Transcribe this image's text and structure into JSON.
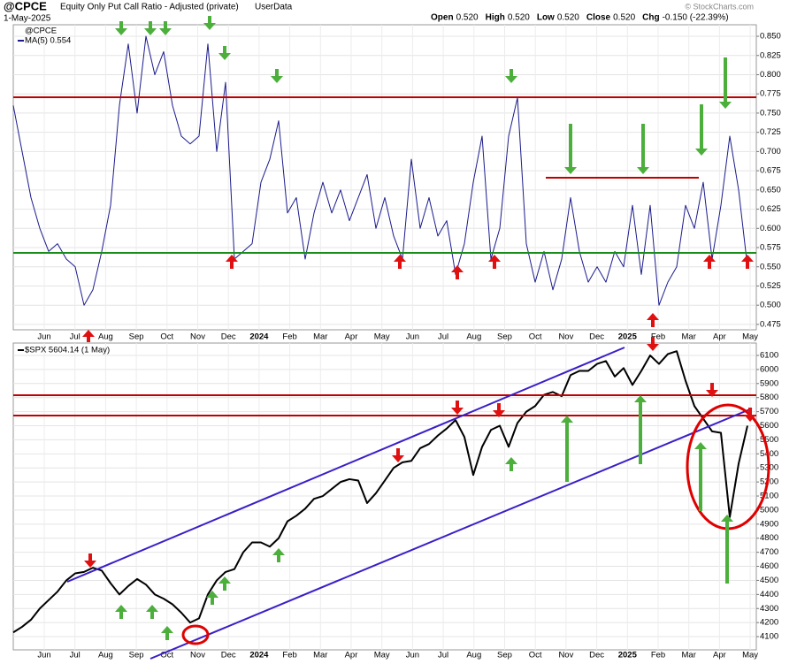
{
  "header": {
    "symbol": "@CPCE",
    "title": "Equity Only Put Call Ratio - Adjusted (private)",
    "source": "UserData",
    "date": "1-May-2025",
    "quote": [
      {
        "label": "Open",
        "value": "0.520"
      },
      {
        "label": "High",
        "value": "0.520"
      },
      {
        "label": "Low",
        "value": "0.520"
      },
      {
        "label": "Close",
        "value": "0.520"
      },
      {
        "label": "Chg",
        "value": "-0.150 (-22.39%)"
      }
    ],
    "credit": "© StockCharts.com"
  },
  "chart_data": [
    {
      "type": "line",
      "legend": [
        "@CPCE",
        "MA(5) 0.554"
      ],
      "x_labels": [
        "Jun",
        "Jul",
        "Aug",
        "Sep",
        "Oct",
        "Nov",
        "Dec",
        "2024",
        "Feb",
        "Mar",
        "Apr",
        "May",
        "Jun",
        "Jul",
        "Aug",
        "Sep",
        "Oct",
        "Nov",
        "Dec",
        "2025",
        "Feb",
        "Mar",
        "Apr",
        "May"
      ],
      "series": [
        {
          "name": "@CPCE",
          "color": "#1a1a8c",
          "values": [
            0.76,
            0.7,
            0.64,
            0.6,
            0.57,
            0.58,
            0.56,
            0.55,
            0.5,
            0.52,
            0.57,
            0.63,
            0.76,
            0.84,
            0.75,
            0.85,
            0.8,
            0.83,
            0.76,
            0.72,
            0.71,
            0.72,
            0.84,
            0.7,
            0.79,
            0.56,
            0.57,
            0.58,
            0.66,
            0.69,
            0.74,
            0.62,
            0.64,
            0.56,
            0.62,
            0.66,
            0.62,
            0.65,
            0.61,
            0.64,
            0.67,
            0.6,
            0.64,
            0.59,
            0.56,
            0.69,
            0.6,
            0.64,
            0.59,
            0.61,
            0.54,
            0.58,
            0.66,
            0.72,
            0.56,
            0.6,
            0.72,
            0.77,
            0.58,
            0.53,
            0.57,
            0.52,
            0.56,
            0.64,
            0.57,
            0.53,
            0.55,
            0.53,
            0.57,
            0.55,
            0.63,
            0.54,
            0.63,
            0.5,
            0.53,
            0.55,
            0.63,
            0.6,
            0.66,
            0.56,
            0.63,
            0.72,
            0.65,
            0.55
          ]
        }
      ],
      "ylim": [
        0.468,
        0.865
      ],
      "yticks": [
        {
          "value": 0.475,
          "label": "0.475"
        },
        {
          "value": 0.5,
          "label": "0.500"
        },
        {
          "value": 0.525,
          "label": "0.525"
        },
        {
          "value": 0.55,
          "label": "0.550"
        },
        {
          "value": 0.575,
          "label": "0.575"
        },
        {
          "value": 0.6,
          "label": "0.600"
        },
        {
          "value": 0.625,
          "label": "0.625"
        },
        {
          "value": 0.65,
          "label": "0.650"
        },
        {
          "value": 0.675,
          "label": "0.675"
        },
        {
          "value": 0.7,
          "label": "0.700"
        },
        {
          "value": 0.725,
          "label": "0.725"
        },
        {
          "value": 0.75,
          "label": "0.750"
        },
        {
          "value": 0.775,
          "label": "0.775"
        },
        {
          "value": 0.8,
          "label": "0.800"
        },
        {
          "value": 0.825,
          "label": "0.825"
        },
        {
          "value": 0.85,
          "label": "0.850"
        }
      ],
      "grid": true
    },
    {
      "type": "line",
      "legend": [
        "$SPX 5604.14 (1 May)"
      ],
      "series": [
        {
          "name": "$SPX",
          "color": "#000000",
          "values": [
            4130,
            4170,
            4220,
            4300,
            4360,
            4420,
            4500,
            4550,
            4560,
            4590,
            4570,
            4480,
            4400,
            4460,
            4510,
            4470,
            4400,
            4370,
            4330,
            4270,
            4200,
            4230,
            4400,
            4500,
            4560,
            4580,
            4700,
            4770,
            4770,
            4740,
            4800,
            4920,
            4960,
            5010,
            5080,
            5100,
            5150,
            5200,
            5220,
            5210,
            5050,
            5120,
            5210,
            5300,
            5340,
            5350,
            5440,
            5470,
            5530,
            5580,
            5640,
            5520,
            5250,
            5450,
            5570,
            5600,
            5450,
            5620,
            5700,
            5740,
            5820,
            5840,
            5810,
            5960,
            5990,
            5990,
            6040,
            6060,
            5950,
            6010,
            5890,
            5990,
            6100,
            6040,
            6110,
            6130,
            5920,
            5740,
            5650,
            5560,
            5550,
            4950,
            5330,
            5600
          ]
        }
      ],
      "ylim": [
        4006,
        6188
      ],
      "yticks": [
        4100,
        4200,
        4300,
        4400,
        4500,
        4600,
        4700,
        4800,
        4900,
        5000,
        5100,
        5200,
        5300,
        5400,
        5500,
        5600,
        5700,
        5800,
        5900,
        6000,
        6100
      ],
      "grid": true
    }
  ]
}
